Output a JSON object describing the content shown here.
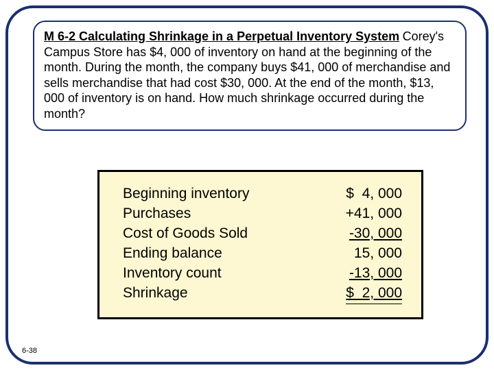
{
  "colors": {
    "frame_border": "#1a2f6f",
    "calc_bg": "#fdf8d2",
    "calc_border": "#000000",
    "text": "#000000",
    "page_bg": "#ffffff"
  },
  "problem": {
    "title": "M 6-2 Calculating Shrinkage in a Perpetual Inventory System",
    "body": "Corey's Campus Store has $4, 000 of inventory on hand at the beginning of the month. During the month, the company buys $41, 000 of merchandise and sells merchandise that had cost $30, 000. At the end of the month, $13, 000 of inventory is on hand. How much shrinkage occurred during the month?"
  },
  "calc": {
    "rows": [
      {
        "label": "Beginning inventory",
        "value": "$  4, 000"
      },
      {
        "label": "Purchases",
        "value": "+41, 000"
      },
      {
        "label": "Cost of Goods Sold",
        "value": "-30, 000",
        "underline": true
      },
      {
        "label": "Ending balance",
        "value": "15, 000"
      },
      {
        "label": "Inventory count",
        "value": "-13, 000",
        "underline": true
      },
      {
        "label": "Shrinkage",
        "value": "$  2, 000",
        "double": true
      }
    ]
  },
  "page_number": "6-38"
}
